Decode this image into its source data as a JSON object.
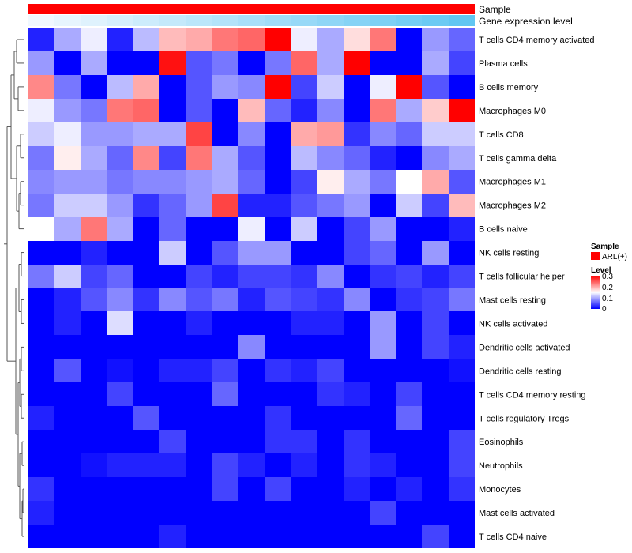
{
  "chart_data": {
    "type": "heatmap",
    "title": "",
    "colorscale": {
      "low": "#0000FF",
      "mid": "#FFFFFF",
      "high": "#FF0000",
      "min": 0,
      "mid_value": 0.15,
      "max": 0.3
    },
    "annotations": [
      {
        "name": "Sample",
        "color": "#FF0000"
      },
      {
        "name": "Gene expression level",
        "low_color": "#F0F8FF",
        "high_color": "#62C6F2"
      }
    ],
    "rows": [
      "T cells CD4 memory activated",
      "Plasma cells",
      "B cells memory",
      "Macrophages M0",
      "T cells CD8",
      "T cells gamma delta",
      "Macrophages M1",
      "Macrophages M2",
      "B cells naive",
      "NK cells resting",
      "T cells follicular helper",
      "Mast cells resting",
      "NK cells activated",
      "Dendritic cells activated",
      "Dendritic cells resting",
      "T cells CD4 memory resting",
      "T cells regulatory  Tregs",
      "Eosinophils",
      "Neutrophils",
      "Monocytes",
      "Mast cells activated",
      "T cells CD4 naive"
    ],
    "values": [
      [
        0.02,
        0.1,
        0.14,
        0.02,
        0.11,
        0.19,
        0.2,
        0.23,
        0.24,
        0.3,
        0.14,
        0.1,
        0.17,
        0.23,
        0.0,
        0.09,
        0.06
      ],
      [
        0.09,
        0.0,
        0.1,
        0.0,
        0.0,
        0.29,
        0.05,
        0.07,
        0.0,
        0.07,
        0.24,
        0.1,
        0.3,
        0.0,
        0.0,
        0.1,
        0.04
      ],
      [
        0.22,
        0.07,
        0.0,
        0.11,
        0.2,
        0.0,
        0.05,
        0.09,
        0.08,
        0.3,
        0.04,
        0.12,
        0.0,
        0.14,
        0.3,
        0.05,
        0.0
      ],
      [
        0.14,
        0.09,
        0.07,
        0.23,
        0.24,
        0.0,
        0.05,
        0.0,
        0.19,
        0.06,
        0.02,
        0.08,
        0.0,
        0.23,
        0.1,
        0.18,
        0.3
      ],
      [
        0.12,
        0.14,
        0.09,
        0.09,
        0.1,
        0.1,
        0.26,
        0.0,
        0.08,
        0.0,
        0.2,
        0.21,
        0.03,
        0.08,
        0.06,
        0.12,
        0.12
      ],
      [
        0.07,
        0.16,
        0.1,
        0.06,
        0.22,
        0.04,
        0.23,
        0.1,
        0.05,
        0.0,
        0.11,
        0.08,
        0.06,
        0.02,
        0.0,
        0.08,
        0.1
      ],
      [
        0.08,
        0.09,
        0.09,
        0.07,
        0.08,
        0.08,
        0.09,
        0.1,
        0.06,
        0.0,
        0.04,
        0.16,
        0.1,
        0.07,
        0.15,
        0.2,
        0.05
      ],
      [
        0.07,
        0.12,
        0.12,
        0.09,
        0.03,
        0.06,
        0.09,
        0.26,
        0.02,
        0.02,
        0.05,
        0.07,
        0.09,
        0.0,
        0.12,
        0.04,
        0.19
      ],
      [
        0.15,
        0.1,
        0.23,
        0.1,
        0.0,
        0.06,
        0.0,
        0.0,
        0.14,
        0.0,
        0.12,
        0.0,
        0.04,
        0.09,
        0.0,
        0.0,
        0.02
      ],
      [
        0.0,
        0.0,
        0.02,
        0.0,
        0.0,
        0.12,
        0.0,
        0.05,
        0.09,
        0.09,
        0.0,
        0.0,
        0.04,
        0.06,
        0.0,
        0.09,
        0.0
      ],
      [
        0.07,
        0.12,
        0.04,
        0.06,
        0.0,
        0.0,
        0.04,
        0.02,
        0.04,
        0.04,
        0.03,
        0.08,
        0.0,
        0.03,
        0.04,
        0.02,
        0.04
      ],
      [
        0.0,
        0.02,
        0.05,
        0.08,
        0.03,
        0.08,
        0.05,
        0.07,
        0.02,
        0.05,
        0.04,
        0.03,
        0.08,
        0.0,
        0.03,
        0.04,
        0.07
      ],
      [
        0.0,
        0.02,
        0.0,
        0.13,
        0.0,
        0.0,
        0.02,
        0.0,
        0.0,
        0.0,
        0.02,
        0.02,
        0.0,
        0.09,
        0.0,
        0.04,
        0.0
      ],
      [
        0.0,
        0.0,
        0.0,
        0.0,
        0.0,
        0.0,
        0.0,
        0.0,
        0.08,
        0.0,
        0.0,
        0.0,
        0.0,
        0.09,
        0.0,
        0.04,
        0.02
      ],
      [
        0.0,
        0.05,
        0.0,
        0.01,
        0.0,
        0.02,
        0.02,
        0.04,
        0.0,
        0.03,
        0.02,
        0.04,
        0.0,
        0.0,
        0.0,
        0.0,
        0.01
      ],
      [
        0.0,
        0.0,
        0.0,
        0.04,
        0.0,
        0.0,
        0.0,
        0.06,
        0.0,
        0.0,
        0.0,
        0.03,
        0.02,
        0.0,
        0.04,
        0.0,
        0.0
      ],
      [
        0.02,
        0.0,
        0.0,
        0.0,
        0.05,
        0.0,
        0.0,
        0.0,
        0.0,
        0.03,
        0.0,
        0.0,
        0.0,
        0.0,
        0.06,
        0.0,
        0.0
      ],
      [
        0.0,
        0.0,
        0.0,
        0.0,
        0.0,
        0.04,
        0.0,
        0.0,
        0.0,
        0.03,
        0.03,
        0.0,
        0.03,
        0.0,
        0.0,
        0.0,
        0.04
      ],
      [
        0.0,
        0.0,
        0.01,
        0.02,
        0.02,
        0.02,
        0.0,
        0.04,
        0.02,
        0.0,
        0.02,
        0.0,
        0.03,
        0.02,
        0.0,
        0.0,
        0.04
      ],
      [
        0.03,
        0.0,
        0.0,
        0.0,
        0.0,
        0.0,
        0.0,
        0.04,
        0.0,
        0.04,
        0.0,
        0.0,
        0.02,
        0.0,
        0.02,
        0.0,
        0.03
      ],
      [
        0.02,
        0.0,
        0.0,
        0.0,
        0.0,
        0.0,
        0.0,
        0.0,
        0.0,
        0.0,
        0.0,
        0.0,
        0.0,
        0.04,
        0.0,
        0.0,
        0.0
      ],
      [
        0.0,
        0.0,
        0.0,
        0.0,
        0.0,
        0.02,
        0.0,
        0.0,
        0.0,
        0.0,
        0.0,
        0.0,
        0.0,
        0.0,
        0.0,
        0.04,
        0.0
      ]
    ],
    "gene_expression_level": [
      0.0,
      0.06,
      0.12,
      0.18,
      0.25,
      0.31,
      0.37,
      0.43,
      0.5,
      0.56,
      0.62,
      0.68,
      0.75,
      0.81,
      0.87,
      0.93,
      1.0
    ],
    "dendrogram_order": "rows clustered; columns ordered by gene expression level"
  },
  "legend": {
    "sample_title": "Sample",
    "sample_item": "ARL(+)",
    "level_title": "Level",
    "ticks": [
      "0.3",
      "0.2",
      "0.1",
      "0"
    ]
  }
}
